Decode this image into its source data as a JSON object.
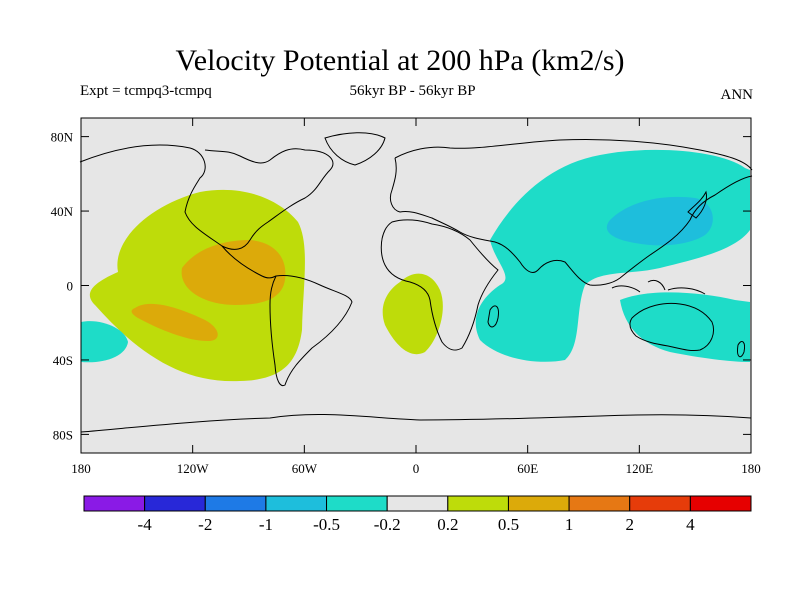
{
  "header": {
    "title": "Velocity Potential at 200 hPa (km2/s)",
    "left": "Expt = tcmpq3-tcmpq",
    "center": "56kyr BP - 56kyr BP",
    "right": "ANN"
  },
  "map": {
    "projection": "cylindrical-equidistant",
    "lon_range": [
      -180,
      180
    ],
    "lat_range": [
      -90,
      90
    ],
    "background_color": "#e6e6e6",
    "lat_ticks": [
      {
        "value": 80,
        "label": "80N"
      },
      {
        "value": 40,
        "label": "40N"
      },
      {
        "value": 0,
        "label": "0"
      },
      {
        "value": -40,
        "label": "40S"
      },
      {
        "value": -80,
        "label": "80S"
      }
    ],
    "lon_ticks": [
      {
        "value": -180,
        "label": "180"
      },
      {
        "value": -120,
        "label": "120W"
      },
      {
        "value": -60,
        "label": "60W"
      },
      {
        "value": 0,
        "label": "0"
      },
      {
        "value": 60,
        "label": "60E"
      },
      {
        "value": 120,
        "label": "120E"
      },
      {
        "value": 180,
        "label": "180"
      }
    ]
  },
  "colorbar": {
    "colors": [
      "#8a1ae6",
      "#2828d8",
      "#1e7ae6",
      "#1ebedc",
      "#1edcc8",
      "#e6e6e6",
      "#bedc0a",
      "#dcaa0a",
      "#e67814",
      "#e63c0a",
      "#e60000"
    ],
    "labels": [
      "-4",
      "-2",
      "-1",
      "-0.5",
      "-0.2",
      "0.2",
      "0.5",
      "1",
      "2",
      "4"
    ]
  }
}
